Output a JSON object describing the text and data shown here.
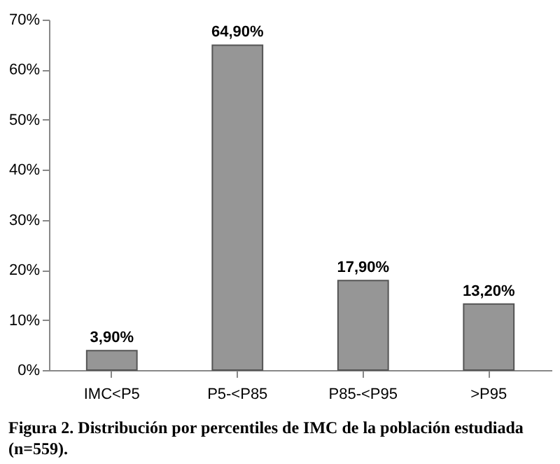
{
  "chart_data": {
    "type": "bar",
    "categories": [
      "IMC<P5",
      "P5-<P85",
      "P85-<P95",
      ">P95"
    ],
    "values": [
      3.9,
      64.9,
      17.9,
      13.2
    ],
    "value_labels": [
      "3,90%",
      "64,90%",
      "17,90%",
      "13,20%"
    ],
    "color": "#969696",
    "ylim": [
      0,
      70
    ],
    "yticks": [
      {
        "value": 0,
        "label": "0%"
      },
      {
        "value": 10,
        "label": "10%"
      },
      {
        "value": 20,
        "label": "20%"
      },
      {
        "value": 30,
        "label": "30%"
      },
      {
        "value": 40,
        "label": "40%"
      },
      {
        "value": 50,
        "label": "50%"
      },
      {
        "value": 60,
        "label": "60%"
      },
      {
        "value": 70,
        "label": "70%"
      }
    ],
    "grid": false,
    "annotations": [
      "Figura 2. Distribución por percentiles de IMC de la población estudiada (n=559)."
    ]
  }
}
